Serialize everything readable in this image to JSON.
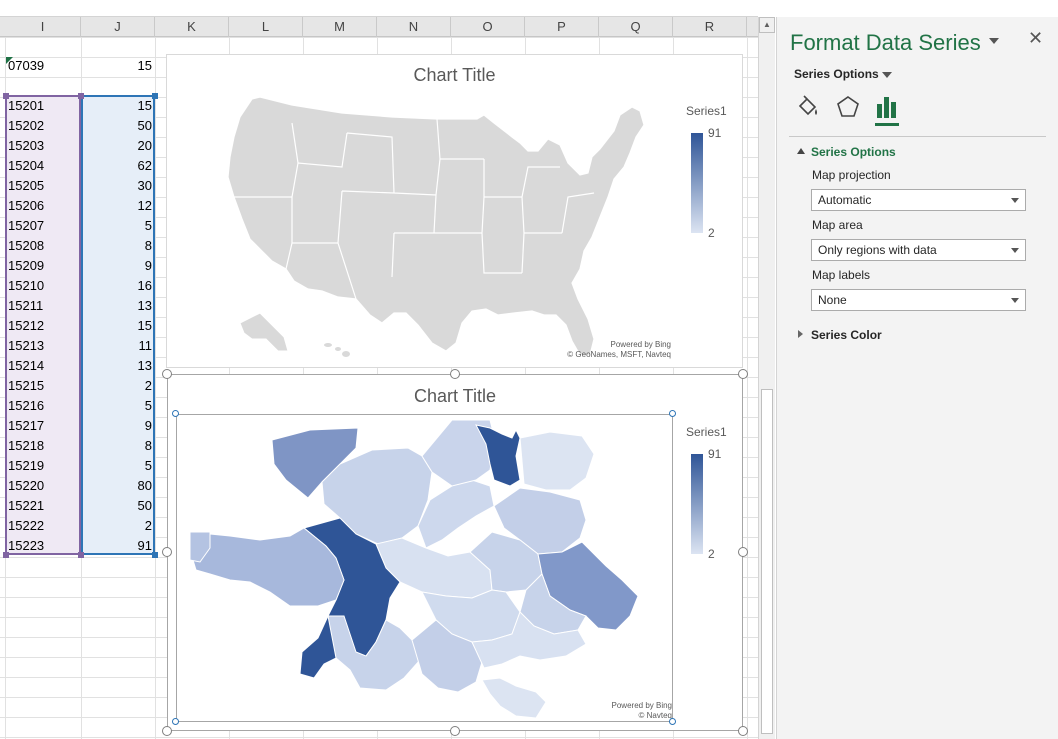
{
  "columns": [
    "I",
    "J",
    "K",
    "L",
    "M",
    "N",
    "O",
    "P",
    "Q",
    "R"
  ],
  "sheet": {
    "top_row": {
      "zip": "07039",
      "value": "15"
    },
    "rows": [
      {
        "zip": "15201",
        "value": "15"
      },
      {
        "zip": "15202",
        "value": "50"
      },
      {
        "zip": "15203",
        "value": "20"
      },
      {
        "zip": "15204",
        "value": "62"
      },
      {
        "zip": "15205",
        "value": "30"
      },
      {
        "zip": "15206",
        "value": "12"
      },
      {
        "zip": "15207",
        "value": "5"
      },
      {
        "zip": "15208",
        "value": "8"
      },
      {
        "zip": "15209",
        "value": "9"
      },
      {
        "zip": "15210",
        "value": "16"
      },
      {
        "zip": "15211",
        "value": "13"
      },
      {
        "zip": "15212",
        "value": "15"
      },
      {
        "zip": "15213",
        "value": "11"
      },
      {
        "zip": "15214",
        "value": "13"
      },
      {
        "zip": "15215",
        "value": "2"
      },
      {
        "zip": "15216",
        "value": "5"
      },
      {
        "zip": "15217",
        "value": "9"
      },
      {
        "zip": "15218",
        "value": "8"
      },
      {
        "zip": "15219",
        "value": "5"
      },
      {
        "zip": "15220",
        "value": "80"
      },
      {
        "zip": "15221",
        "value": "50"
      },
      {
        "zip": "15222",
        "value": "2"
      },
      {
        "zip": "15223",
        "value": "91"
      }
    ]
  },
  "chart1": {
    "title": "Chart Title",
    "legend_title": "Series1",
    "legend_max": "91",
    "legend_min": "2",
    "credit_line1": "Powered by Bing",
    "credit_line2": "© GeoNames, MSFT, Navteq"
  },
  "chart2": {
    "title": "Chart Title",
    "legend_title": "Series1",
    "legend_max": "91",
    "legend_min": "2",
    "credit_line1": "Powered by Bing",
    "credit_line2": "© Navteq"
  },
  "pane": {
    "title": "Format Data Series",
    "close": "✕",
    "series_options_dropdown": "Series Options",
    "section_series_options": "Series Options",
    "map_projection_label": "Map projection",
    "map_projection_value": "Automatic",
    "map_area_label": "Map area",
    "map_area_value": "Only regions with data",
    "map_labels_label": "Map labels",
    "map_labels_value": "None",
    "section_series_color": "Series Color"
  },
  "colors": {
    "accent_green": "#217346",
    "map_dark": "#2f5597",
    "map_light": "#dce4f2",
    "range_purple": "#8064a2",
    "range_blue": "#2e75b6"
  }
}
